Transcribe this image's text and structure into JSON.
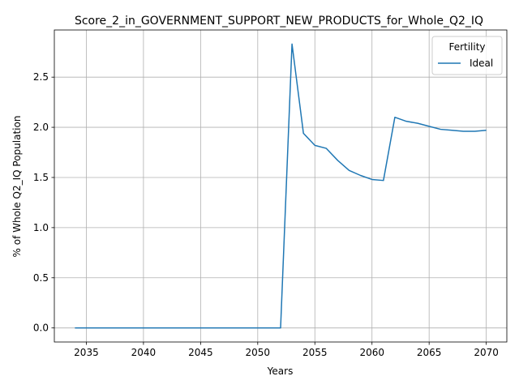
{
  "chart_data": {
    "type": "line",
    "title": "Score_2_in_GOVERNMENT_SUPPORT_NEW_PRODUCTS_for_Whole_Q2_IQ",
    "xlabel": "Years",
    "ylabel": "% of Whole Q2_IQ Population",
    "xlim": [
      2032.2,
      2071.8
    ],
    "ylim": [
      -0.14,
      2.97
    ],
    "xticks": [
      2035,
      2040,
      2045,
      2050,
      2055,
      2060,
      2065,
      2070
    ],
    "xtick_labels": [
      "2035",
      "2040",
      "2045",
      "2050",
      "2055",
      "2060",
      "2065",
      "2070"
    ],
    "yticks": [
      0.0,
      0.5,
      1.0,
      1.5,
      2.0,
      2.5
    ],
    "ytick_labels": [
      "0.0",
      "0.5",
      "1.0",
      "1.5",
      "2.0",
      "2.5"
    ],
    "grid": true,
    "legend": {
      "title": "Fertility",
      "placement": "top-right"
    },
    "series": [
      {
        "name": "Ideal",
        "color": "#1f77b4",
        "x": [
          2034,
          2035,
          2036,
          2037,
          2038,
          2039,
          2040,
          2041,
          2042,
          2043,
          2044,
          2045,
          2046,
          2047,
          2048,
          2049,
          2050,
          2051,
          2052,
          2053,
          2054,
          2055,
          2056,
          2057,
          2058,
          2059,
          2060,
          2061,
          2062,
          2063,
          2064,
          2065,
          2066,
          2067,
          2068,
          2069,
          2070
        ],
        "values": [
          0,
          0,
          0,
          0,
          0,
          0,
          0,
          0,
          0,
          0,
          0,
          0,
          0,
          0,
          0,
          0,
          0,
          0,
          0,
          2.83,
          1.94,
          1.82,
          1.79,
          1.67,
          1.57,
          1.52,
          1.48,
          1.47,
          2.1,
          2.06,
          2.04,
          2.01,
          1.98,
          1.97,
          1.96,
          1.96,
          1.97
        ]
      }
    ]
  }
}
